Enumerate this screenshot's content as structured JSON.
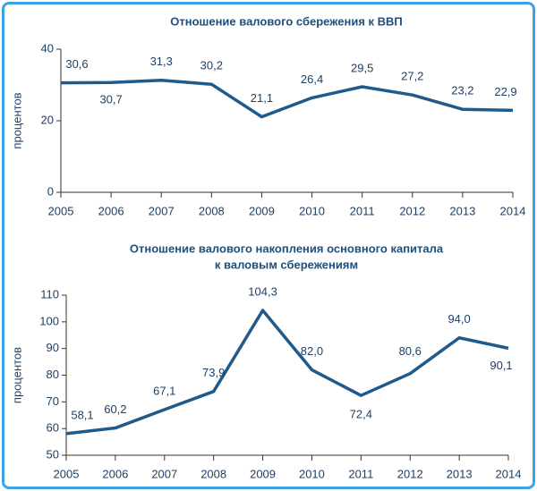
{
  "chart_data": [
    {
      "type": "line",
      "title": "Отношение валового сбережения к ВВП",
      "y_label": "процентов",
      "categories": [
        "2005",
        "2006",
        "2007",
        "2008",
        "2009",
        "2010",
        "2011",
        "2012",
        "2013",
        "2014"
      ],
      "series": [
        {
          "name": "Отношение валового сбережения к ВВП",
          "color": "#1f5a8c",
          "values": [
            30.6,
            30.7,
            31.3,
            30.2,
            21.1,
            26.4,
            29.5,
            27.2,
            23.2,
            22.9
          ],
          "value_labels": [
            "30,6",
            "30,7",
            "31,3",
            "30,2",
            "21,1",
            "26,4",
            "29,5",
            "27,2",
            "23,2",
            "22,9"
          ]
        }
      ],
      "ylim": [
        0,
        40
      ],
      "yticks": [
        0,
        20,
        40
      ],
      "grid": false
    },
    {
      "type": "line",
      "title": [
        "Отношение валового накопления основного капитала",
        "к валовым сбережениям"
      ],
      "y_label": "процентов",
      "categories": [
        "2005",
        "2006",
        "2007",
        "2008",
        "2009",
        "2010",
        "2011",
        "2012",
        "2013",
        "2014"
      ],
      "series": [
        {
          "name": "Отношение валового накопления основного капитала к валовым сбережениям",
          "color": "#1f5a8c",
          "values": [
            58.1,
            60.2,
            67.1,
            73.9,
            104.3,
            82.0,
            72.4,
            80.6,
            94.0,
            90.1
          ],
          "value_labels": [
            "58,1",
            "60,2",
            "67,1",
            "73,9",
            "104,3",
            "82,0",
            "72,4",
            "80,6",
            "94,0",
            "90,1"
          ]
        }
      ],
      "ylim": [
        50,
        110
      ],
      "yticks": [
        50,
        60,
        70,
        80,
        90,
        100,
        110
      ],
      "grid": false
    }
  ]
}
